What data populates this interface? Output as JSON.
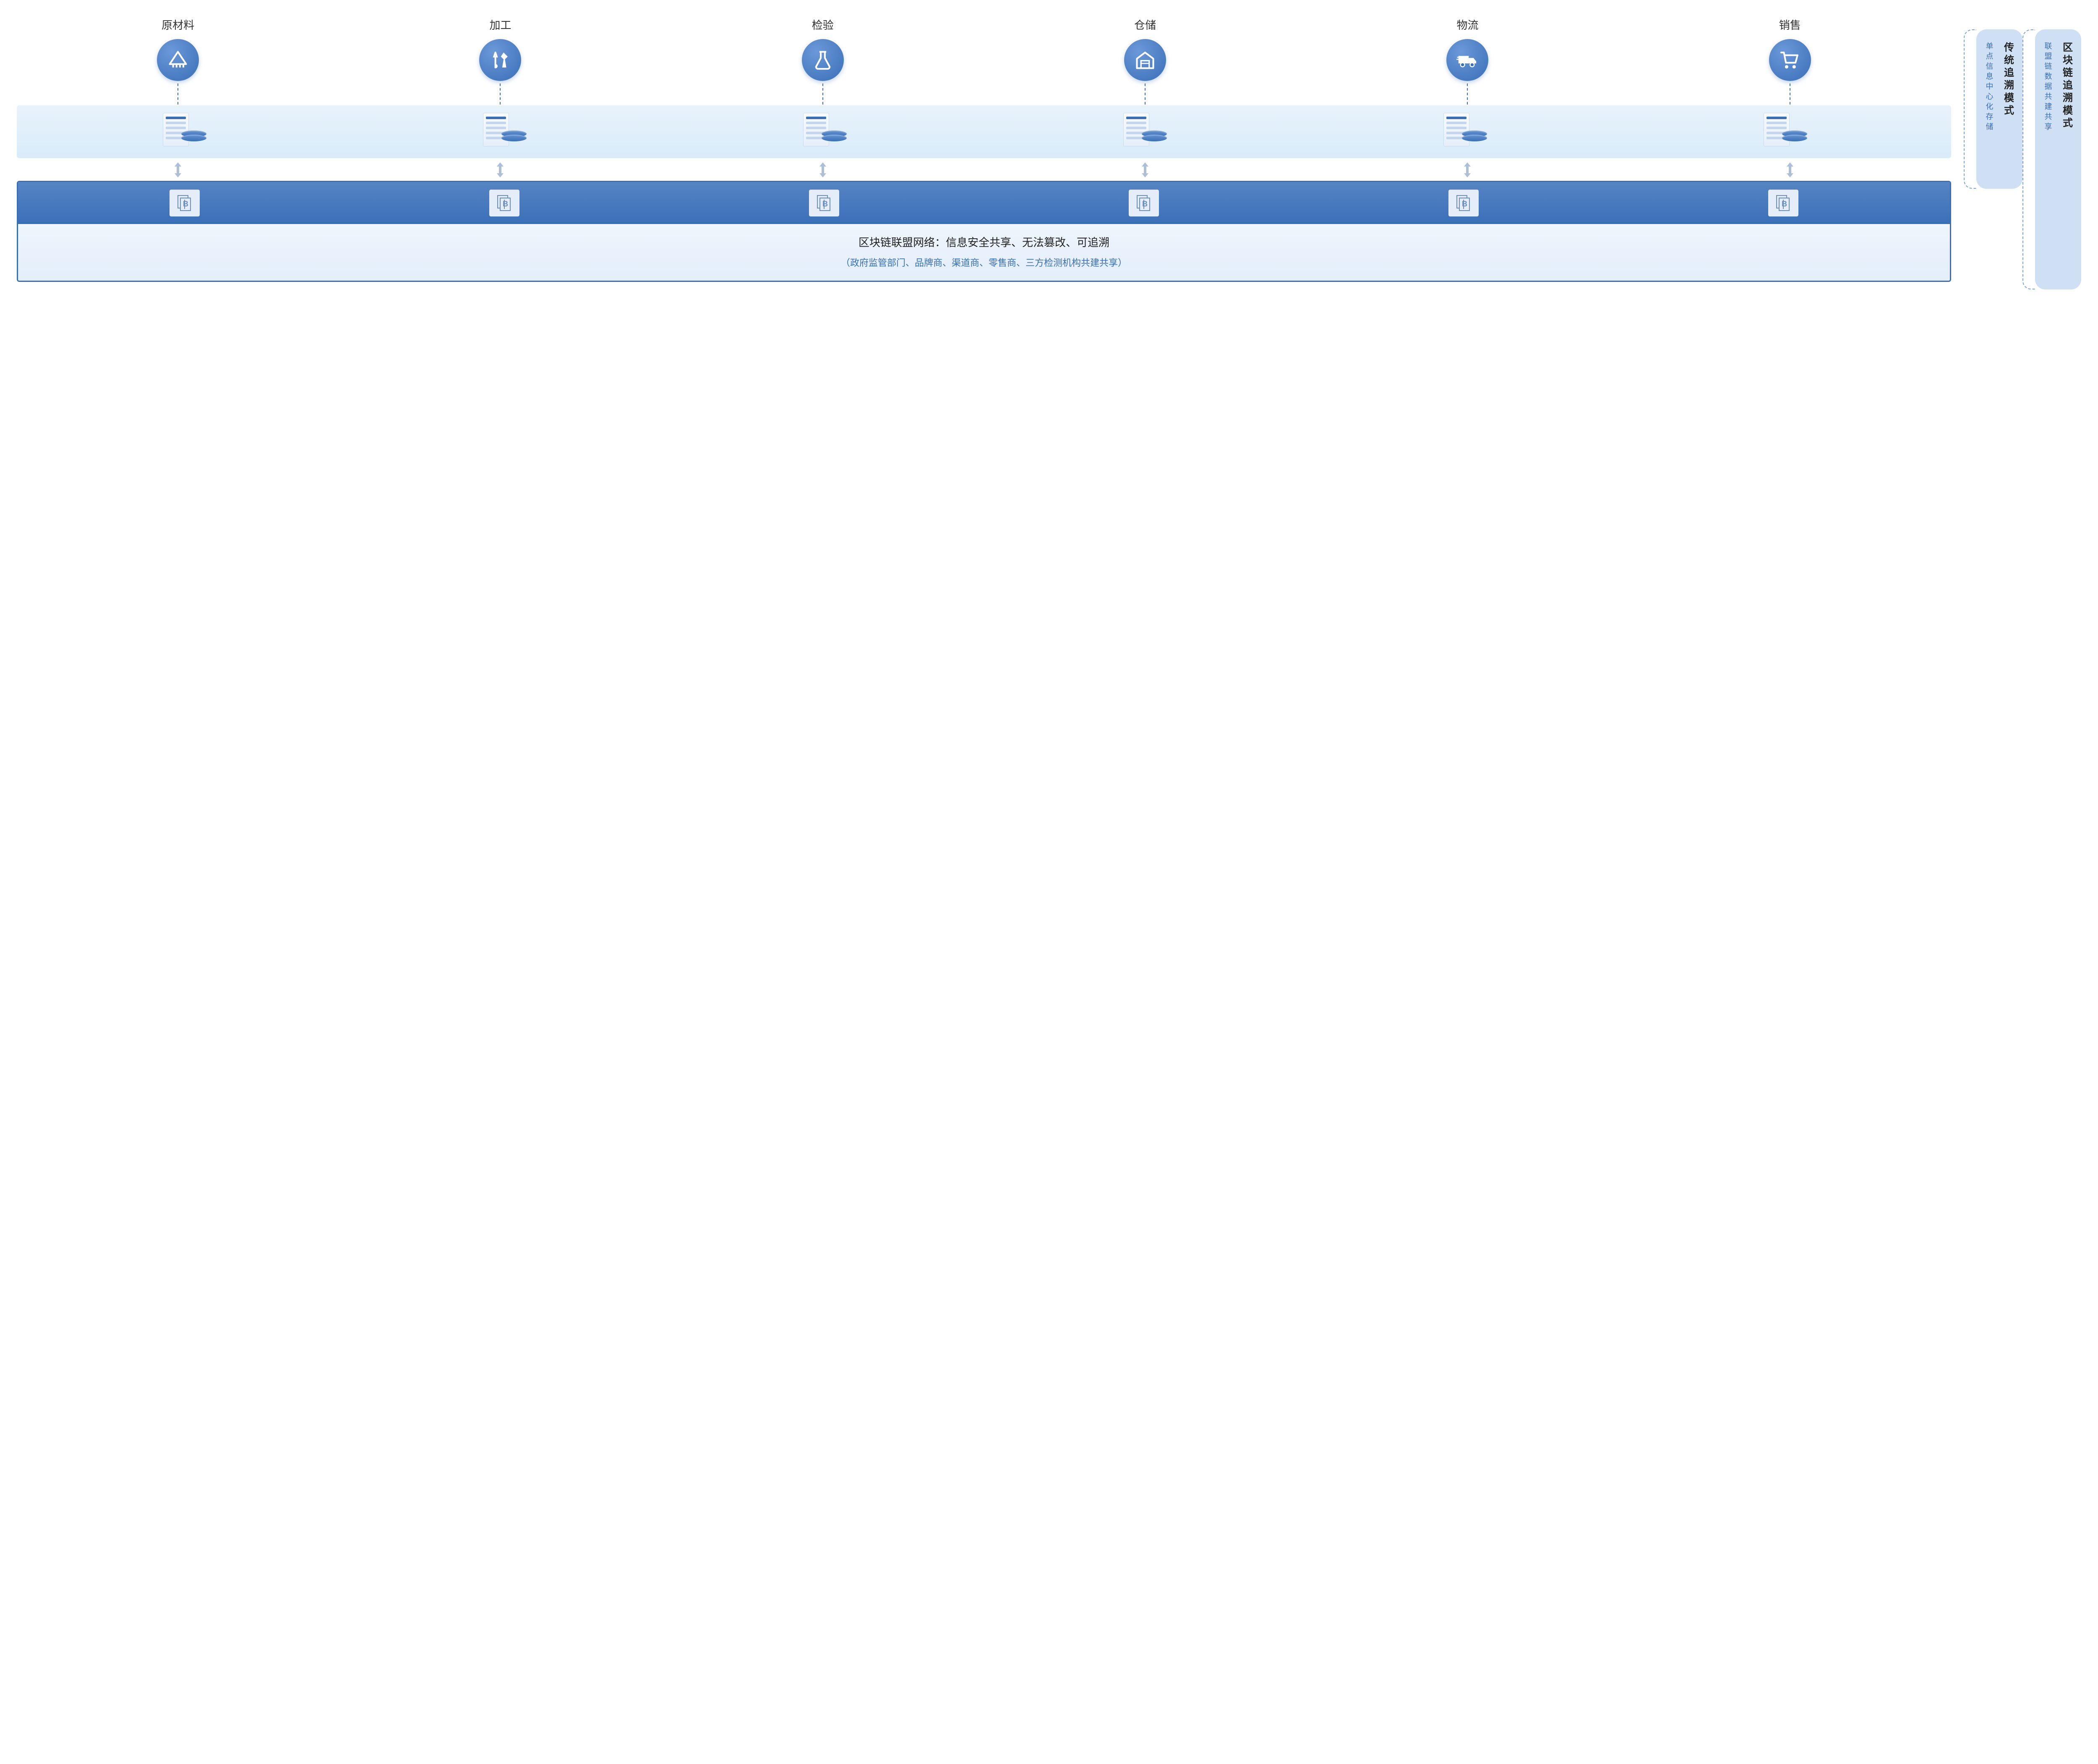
{
  "stages": [
    {
      "label": "原材料",
      "icon": "material"
    },
    {
      "label": "加工",
      "icon": "tools"
    },
    {
      "label": "检验",
      "icon": "flask"
    },
    {
      "label": "仓储",
      "icon": "warehouse"
    },
    {
      "label": "物流",
      "icon": "truck"
    },
    {
      "label": "销售",
      "icon": "cart"
    }
  ],
  "blockchain": {
    "title": "区块链联盟网络：信息安全共享、无法篡改、可追溯",
    "subtitle": "（政府监管部门、品牌商、渠道商、零售商、三方检测机构共建共享）"
  },
  "modes": {
    "traditional": {
      "title": "传统追溯模式",
      "sub": "单点信息中心化存储"
    },
    "blockchain": {
      "title": "区块链追溯模式",
      "sub": "联盟链数据共建共享"
    }
  },
  "colors": {
    "primary": "#3a6fb8",
    "light": "#cfe0f4",
    "storage_band": "#e3effb",
    "text": "#333333"
  }
}
